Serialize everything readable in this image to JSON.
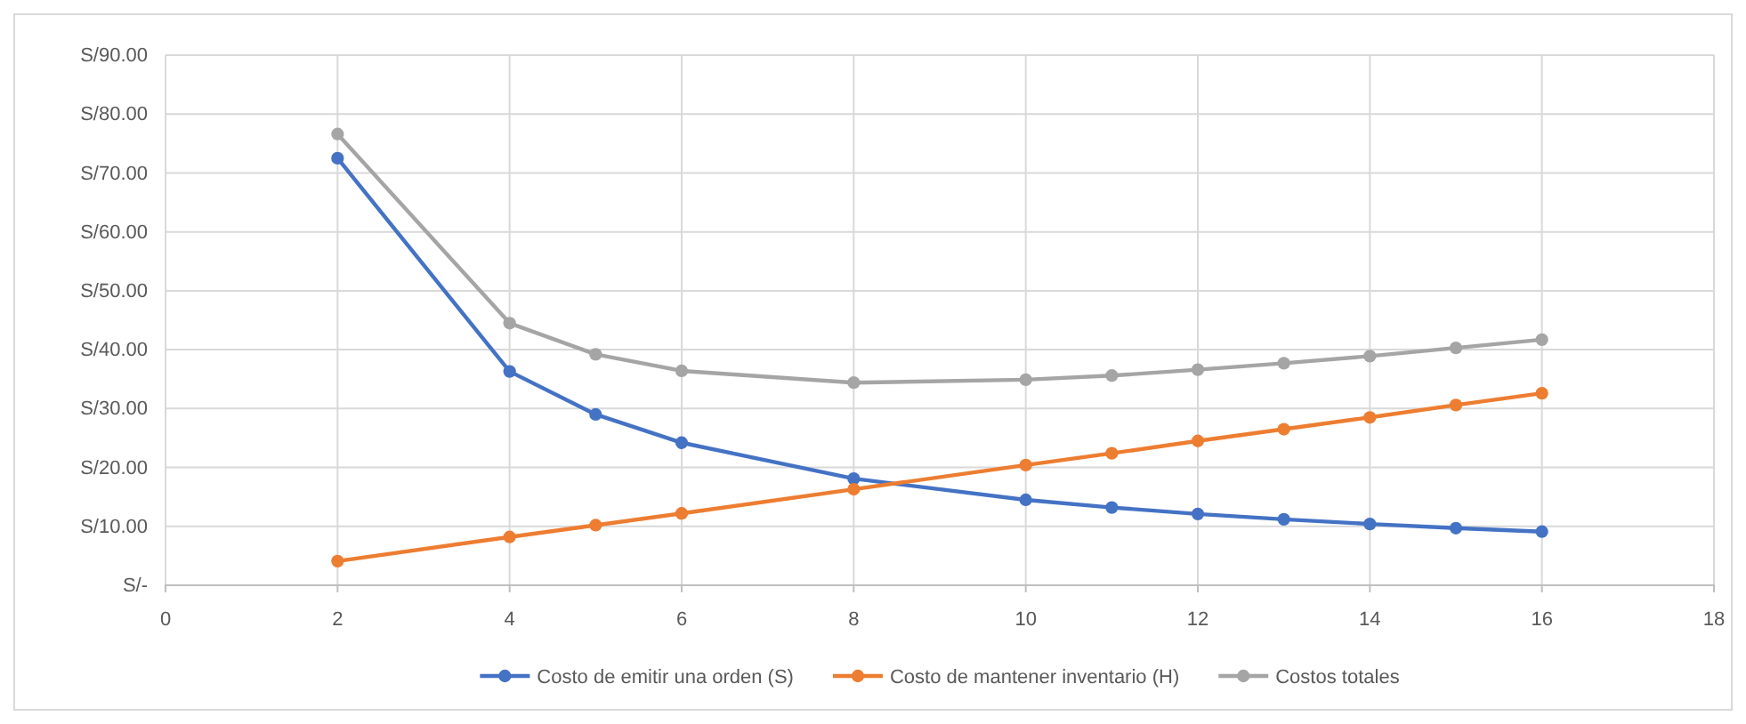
{
  "chart_data": {
    "type": "line",
    "x": [
      2,
      4,
      5,
      6,
      8,
      10,
      11,
      12,
      13,
      14,
      15,
      16
    ],
    "series": [
      {
        "name": "Costo de emitir una orden (S)",
        "color": "#4472c4",
        "values": [
          72.5,
          36.3,
          29,
          24.2,
          18.1,
          14.5,
          13.2,
          12.1,
          11.2,
          10.4,
          9.7,
          9.1
        ]
      },
      {
        "name": "Costo de mantener inventario (H)",
        "color": "#ed7d31",
        "values": [
          4.1,
          8.2,
          10.2,
          12.2,
          16.3,
          20.4,
          22.4,
          24.5,
          26.5,
          28.5,
          30.6,
          32.6
        ]
      },
      {
        "name": "Costos totales",
        "color": "#a5a5a5",
        "values": [
          76.6,
          44.5,
          39.2,
          36.4,
          34.4,
          34.9,
          35.6,
          36.6,
          37.7,
          38.9,
          40.3,
          41.7
        ]
      }
    ],
    "xlim": [
      0,
      18
    ],
    "xticks": [
      0,
      2,
      4,
      6,
      8,
      10,
      12,
      14,
      16,
      18
    ],
    "ylim": [
      0,
      90
    ],
    "yticks": [
      {
        "value": 0,
        "label": "S/-"
      },
      {
        "value": 10,
        "label": "S/10.00"
      },
      {
        "value": 20,
        "label": "S/20.00"
      },
      {
        "value": 30,
        "label": "S/30.00"
      },
      {
        "value": 40,
        "label": "S/40.00"
      },
      {
        "value": 50,
        "label": "S/50.00"
      },
      {
        "value": 60,
        "label": "S/60.00"
      },
      {
        "value": 70,
        "label": "S/70.00"
      },
      {
        "value": 80,
        "label": "S/80.00"
      },
      {
        "value": 90,
        "label": "S/90.00"
      }
    ],
    "grid": true,
    "legend": "bottom",
    "marker": "circle",
    "line_style": "solid"
  }
}
